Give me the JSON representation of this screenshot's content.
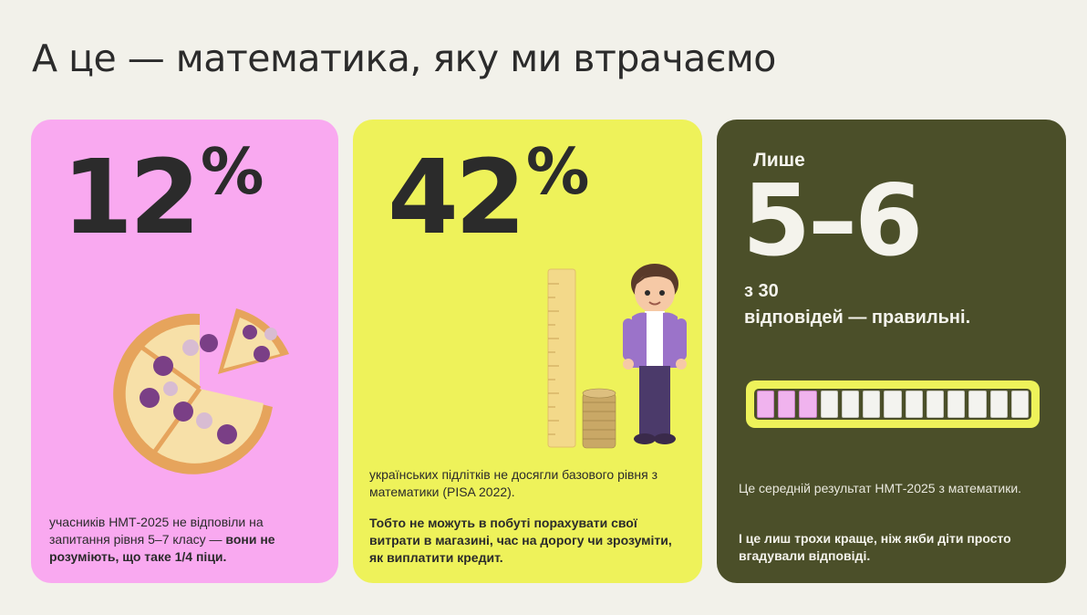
{
  "title": "А це — математика, яку ми втрачаємо",
  "cards": [
    {
      "big_number": "12",
      "percent_sign": "%",
      "text_regular": "учасників НМТ-2025 не відповіли на запитання рівня 5–7 класу — ",
      "text_bold": "вони не розуміють, що таке 1/4 піци.",
      "image": "pizza-icon"
    },
    {
      "big_number": "42",
      "percent_sign": "%",
      "text_1": "українських підлітків не досягли базового рівня з математики (PISA 2022).",
      "text_2": "Тобто не можуть в побуті порахувати свої витрати в магазині, час на дорогу чи зрозуміти, як виплатити кредит.",
      "image": "student-with-ruler-and-coins-icon"
    },
    {
      "lead": "Лише",
      "range": "5–6",
      "sub_1": "з 30",
      "sub_2": "відповідей — правильні.",
      "meter_filled": 3,
      "meter_total": 13,
      "text_1": "Це середній результат НМТ-2025 з математики.",
      "text_2": "І це лиш трохи краще, ніж якби діти просто вгадували відповіді."
    }
  ],
  "colors": {
    "background": "#f2f1ea",
    "pink": "#f9a9f0",
    "yellow": "#eef25a",
    "olive": "#4b4f29",
    "dark_text": "#2b2b2b"
  }
}
